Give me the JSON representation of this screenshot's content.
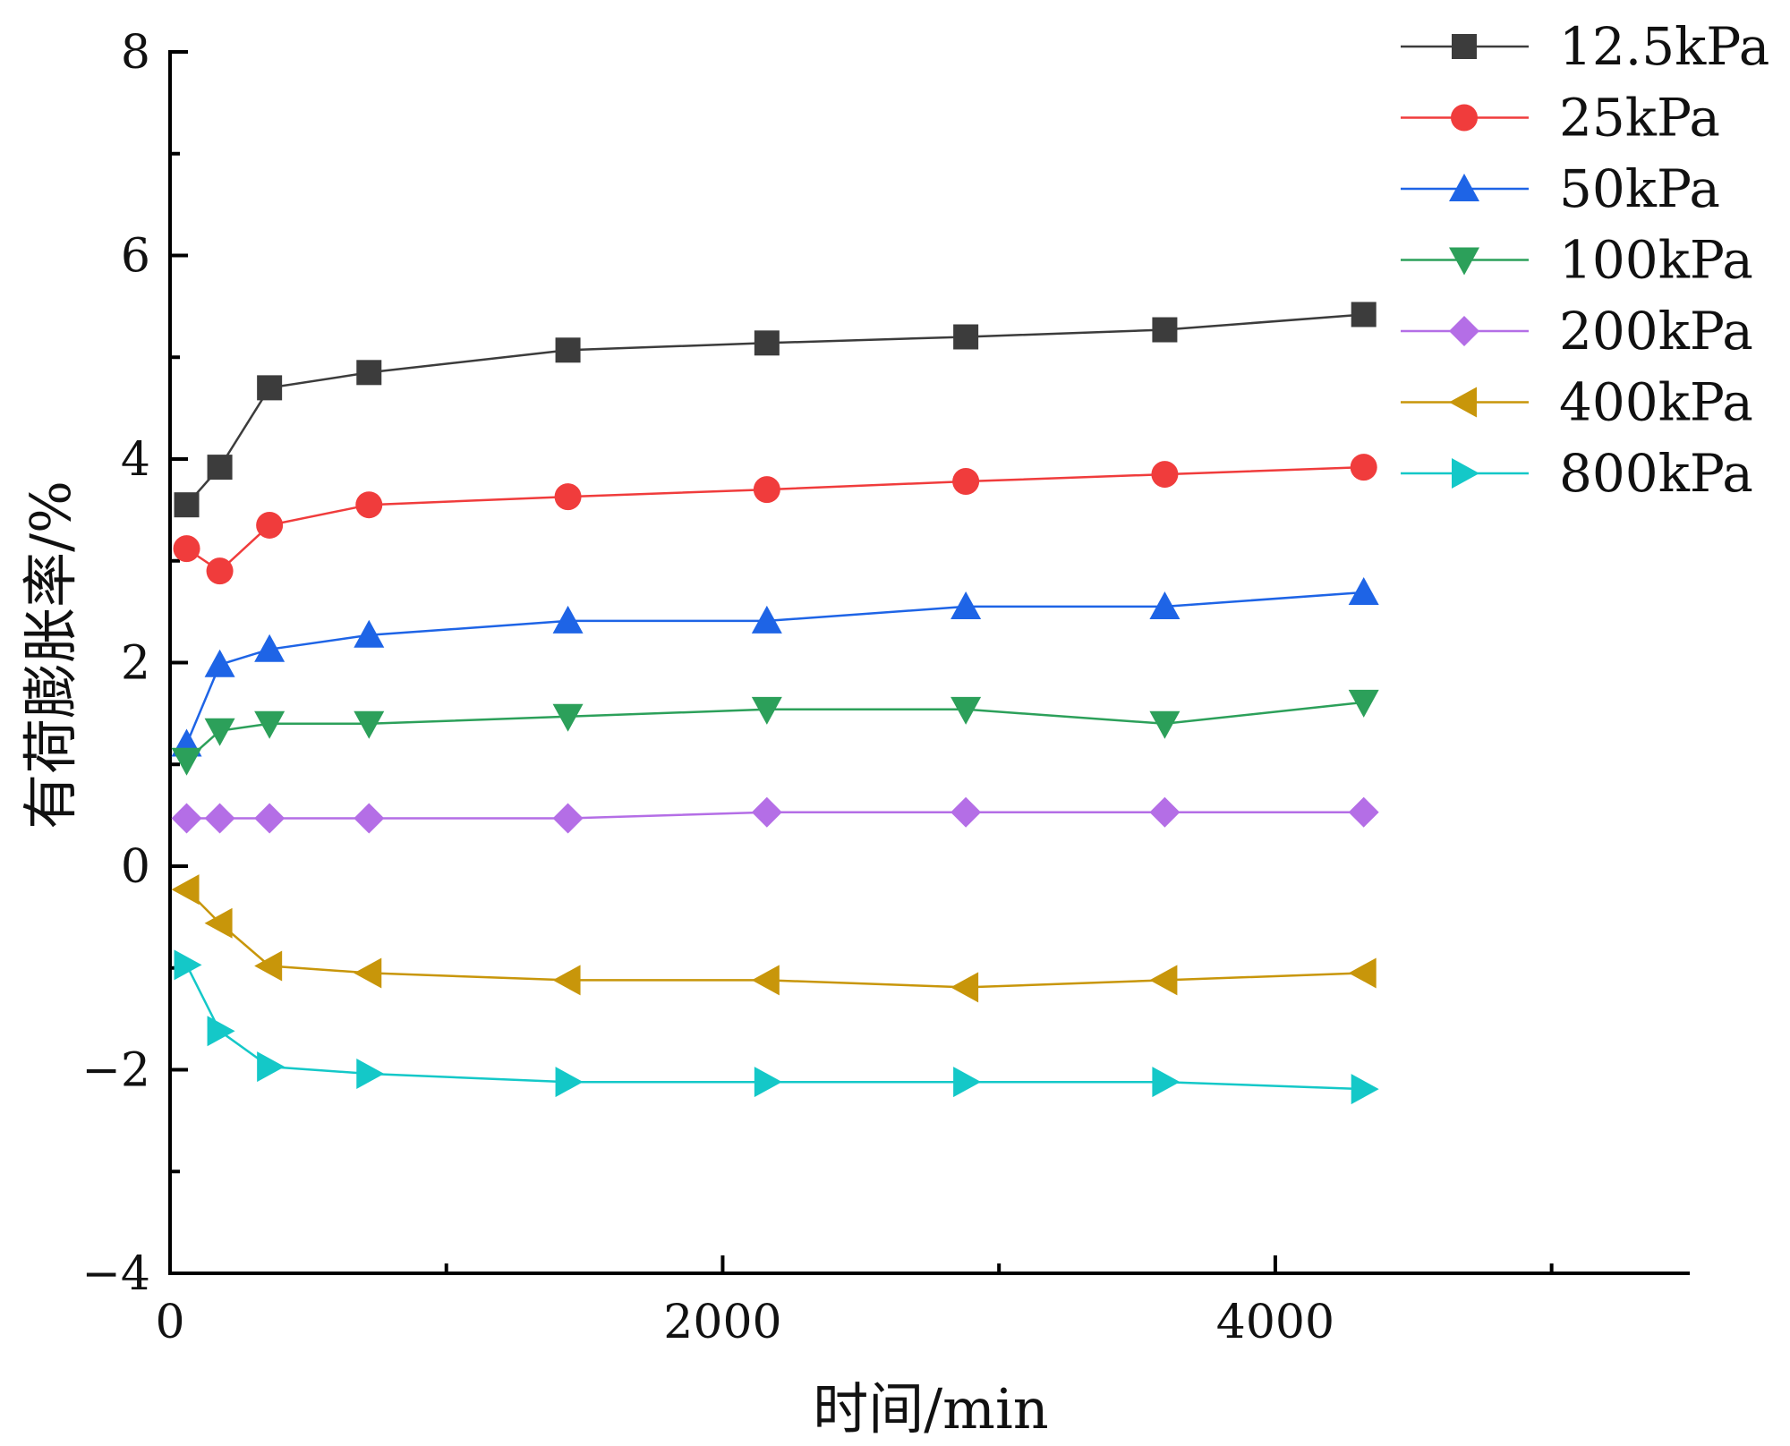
{
  "chart_data": {
    "type": "line",
    "xlabel": "时间/min",
    "ylabel": "有荷膨胀率/%",
    "xlim": [
      0,
      5500
    ],
    "ylim": [
      -4,
      8
    ],
    "xticks": [
      0,
      2000,
      4000
    ],
    "xtick_labels": [
      "0",
      "2000",
      "4000"
    ],
    "x_minor_ticks": [
      1000,
      3000,
      5000
    ],
    "yticks": [
      -4,
      -2,
      0,
      2,
      4,
      6,
      8
    ],
    "ytick_labels": [
      "−4",
      "−2",
      "0",
      "2",
      "4",
      "6",
      "8"
    ],
    "y_minor_ticks": [
      -3,
      -1,
      1,
      3,
      5,
      7
    ],
    "grid": false,
    "legend_position": "top-right",
    "x": [
      60,
      180,
      360,
      720,
      1440,
      2160,
      2880,
      3600,
      4320
    ],
    "series": [
      {
        "name": "12.5kPa",
        "marker": "square",
        "color": "#3c3c3c",
        "values": [
          3.55,
          3.92,
          4.7,
          4.85,
          5.07,
          5.14,
          5.2,
          5.27,
          5.42
        ]
      },
      {
        "name": "25kPa",
        "marker": "circle",
        "color": "#f03c3c",
        "values": [
          3.12,
          2.9,
          3.35,
          3.55,
          3.63,
          3.7,
          3.78,
          3.85,
          3.92
        ]
      },
      {
        "name": "50kPa",
        "marker": "triangle-up",
        "color": "#1e64e6",
        "values": [
          1.2,
          1.98,
          2.13,
          2.27,
          2.41,
          2.41,
          2.55,
          2.55,
          2.69
        ]
      },
      {
        "name": "100kPa",
        "marker": "triangle-down",
        "color": "#2ca05a",
        "values": [
          1.04,
          1.33,
          1.4,
          1.4,
          1.47,
          1.54,
          1.54,
          1.4,
          1.61
        ]
      },
      {
        "name": "200kPa",
        "marker": "diamond",
        "color": "#b46ee6",
        "values": [
          0.47,
          0.47,
          0.47,
          0.47,
          0.47,
          0.53,
          0.53,
          0.53,
          0.53
        ]
      },
      {
        "name": "400kPa",
        "marker": "triangle-left",
        "color": "#c8960a",
        "values": [
          -0.23,
          -0.56,
          -0.98,
          -1.05,
          -1.12,
          -1.12,
          -1.19,
          -1.12,
          -1.05
        ]
      },
      {
        "name": "800kPa",
        "marker": "triangle-right",
        "color": "#14c8c8",
        "values": [
          -0.97,
          -1.62,
          -1.97,
          -2.04,
          -2.12,
          -2.12,
          -2.12,
          -2.12,
          -2.19
        ]
      }
    ]
  }
}
